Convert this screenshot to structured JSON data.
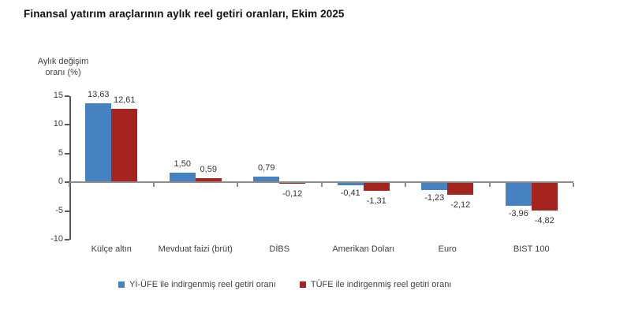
{
  "title": "Finansal yatırım araçlarının aylık reel getiri oranları, Ekim 2025",
  "y_axis_title": "Aylık değişim\noranı (%)",
  "colors": {
    "series_blue": "#4682c1",
    "series_red": "#a5241d",
    "axis_dark": "#595959",
    "axis_gray": "#8c8c8c",
    "text_dark": "#404040"
  },
  "chart_data": {
    "type": "bar",
    "title": "Finansal yatırım araçlarının aylık reel getiri oranları, Ekim 2025",
    "xlabel": "",
    "ylabel": "Aylık değişim oranı (%)",
    "ylim": [
      -10,
      15
    ],
    "yticks": [
      15,
      10,
      5,
      0,
      -5,
      -10
    ],
    "grid": false,
    "legend_position": "bottom",
    "categories": [
      "Külçe altın",
      "Mevduat faizi (brüt)",
      "DİBS",
      "Amerikan Doları",
      "Euro",
      "BIST 100"
    ],
    "series": [
      {
        "name": "Yİ-ÜFE ile indirgenmiş reel getiri oranı",
        "color": "#4682c1",
        "values": [
          13.63,
          1.5,
          0.79,
          -0.41,
          -1.23,
          -3.96
        ],
        "value_labels": [
          "13,63",
          "1,50",
          "0,79",
          "-0,41",
          "-1,23",
          "-3,96"
        ]
      },
      {
        "name": "TÜFE ile indirgenmiş reel getiri oranı",
        "color": "#a5241d",
        "values": [
          12.61,
          0.59,
          -0.12,
          -1.31,
          -2.12,
          -4.82
        ],
        "value_labels": [
          "12,61",
          "0,59",
          "-0,12",
          "-1,31",
          "-2,12",
          "-4,82"
        ]
      }
    ]
  }
}
